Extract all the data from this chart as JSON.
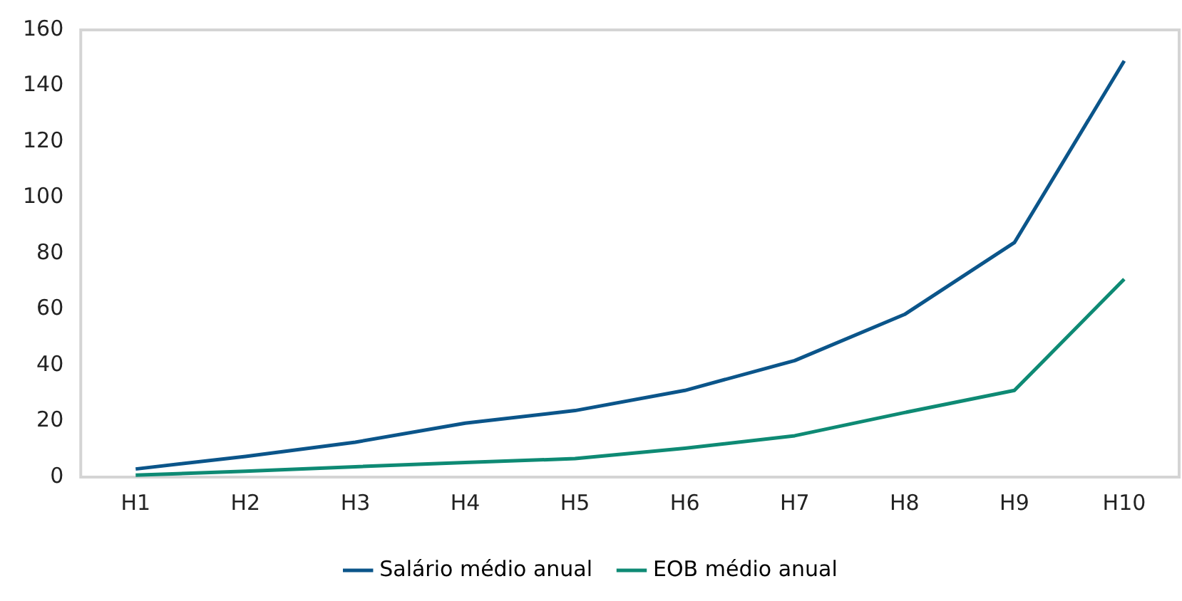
{
  "chart_data": {
    "type": "line",
    "categories": [
      "H1",
      "H2",
      "H3",
      "H4",
      "H5",
      "H6",
      "H7",
      "H8",
      "H9",
      "H10"
    ],
    "series": [
      {
        "name": "Salário médio anual",
        "color": "#0b558a",
        "values": [
          2.9,
          7.4,
          12.5,
          19.3,
          23.8,
          31,
          41.7,
          58.2,
          83.9,
          148.9
        ]
      },
      {
        "name": "EOB médio anual",
        "color": "#0e8a74",
        "values": [
          0.7,
          2.1,
          3.7,
          5.2,
          6.6,
          10.3,
          14.8,
          23.1,
          31,
          70.8
        ]
      }
    ],
    "ylim": [
      0,
      160
    ],
    "yticks": [
      0,
      20,
      40,
      60,
      80,
      100,
      120,
      140,
      160
    ],
    "grid": false,
    "legend": "bottom",
    "marker": "none",
    "line_style": "solid"
  }
}
